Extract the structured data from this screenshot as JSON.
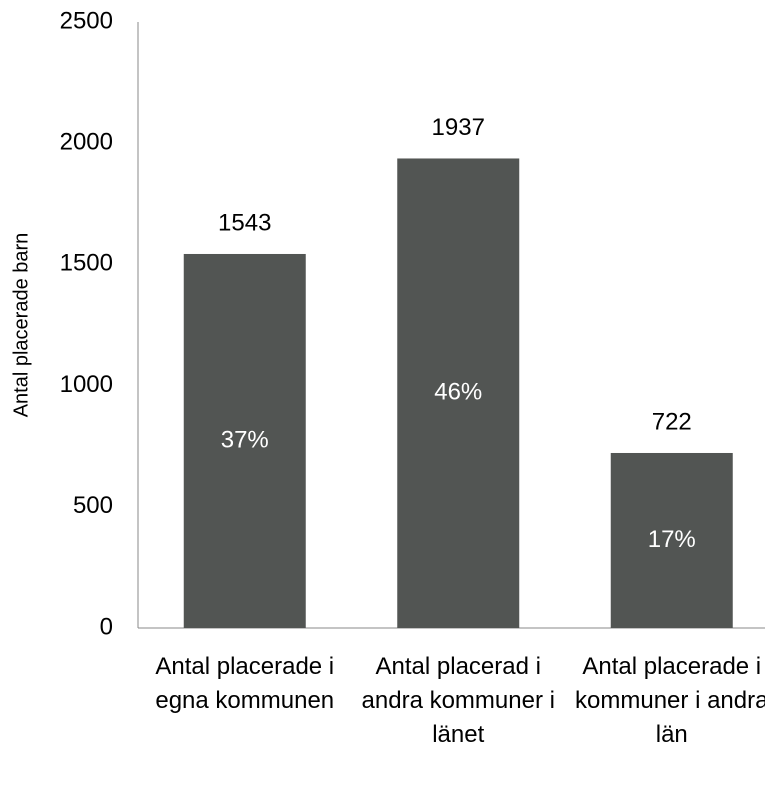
{
  "chart_data": {
    "type": "bar",
    "y_label": "Antal placerade barn",
    "categories": [
      "Antal placerade i egna kommunen",
      "Antal placerad i andra kommuner i länet",
      "Antal placerade i kommuner i andra län"
    ],
    "values": [
      1543,
      1937,
      722
    ],
    "percent_values": [
      37,
      46,
      17
    ],
    "percent_labels": [
      "37%",
      "46%",
      "17%"
    ],
    "color": "#525553",
    "ylim": [
      0,
      2500
    ],
    "yticks": [
      0,
      500,
      1000,
      1500,
      2000,
      2500
    ],
    "grid": false
  }
}
